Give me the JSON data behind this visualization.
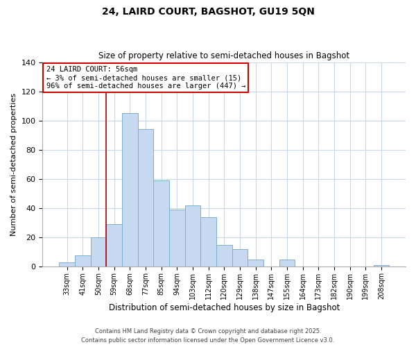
{
  "title": "24, LAIRD COURT, BAGSHOT, GU19 5QN",
  "subtitle": "Size of property relative to semi-detached houses in Bagshot",
  "xlabel": "Distribution of semi-detached houses by size in Bagshot",
  "ylabel": "Number of semi-detached properties",
  "bar_labels": [
    "33sqm",
    "41sqm",
    "50sqm",
    "59sqm",
    "68sqm",
    "77sqm",
    "85sqm",
    "94sqm",
    "103sqm",
    "112sqm",
    "120sqm",
    "129sqm",
    "138sqm",
    "147sqm",
    "155sqm",
    "164sqm",
    "173sqm",
    "182sqm",
    "190sqm",
    "199sqm",
    "208sqm"
  ],
  "bar_values": [
    3,
    8,
    20,
    29,
    105,
    94,
    59,
    39,
    42,
    34,
    15,
    12,
    5,
    0,
    5,
    0,
    0,
    0,
    0,
    0,
    1
  ],
  "bar_color": "#c6d9f1",
  "bar_edgecolor": "#7bafd4",
  "ylim": [
    0,
    140
  ],
  "yticks": [
    0,
    20,
    40,
    60,
    80,
    100,
    120,
    140
  ],
  "vline_x": 2.5,
  "vline_color": "#aa0000",
  "annotation_title": "24 LAIRD COURT: 56sqm",
  "annotation_line1": "← 3% of semi-detached houses are smaller (15)",
  "annotation_line2": "96% of semi-detached houses are larger (447) →",
  "footer1": "Contains HM Land Registry data © Crown copyright and database right 2025.",
  "footer2": "Contains public sector information licensed under the Open Government Licence v3.0.",
  "background_color": "#ffffff",
  "grid_color": "#c8d8e8"
}
